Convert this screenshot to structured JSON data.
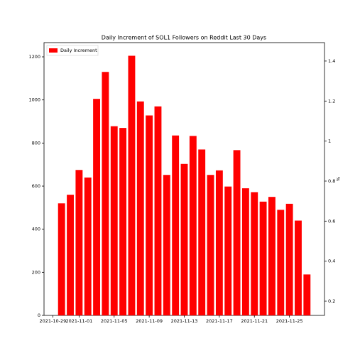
{
  "chart_data": {
    "type": "bar",
    "title": "Daily Increment of SOL1 Followers on Reddit Last 30 Days",
    "y2label": "%",
    "x": [
      "2021-10-30",
      "2021-10-31",
      "2021-11-01",
      "2021-11-02",
      "2021-11-03",
      "2021-11-04",
      "2021-11-05",
      "2021-11-06",
      "2021-11-07",
      "2021-11-08",
      "2021-11-09",
      "2021-11-10",
      "2021-11-11",
      "2021-11-12",
      "2021-11-13",
      "2021-11-14",
      "2021-11-15",
      "2021-11-16",
      "2021-11-17",
      "2021-11-18",
      "2021-11-19",
      "2021-11-20",
      "2021-11-21",
      "2021-11-22",
      "2021-11-23",
      "2021-11-24",
      "2021-11-25",
      "2021-11-26",
      "2021-11-27"
    ],
    "series": [
      {
        "name": "Daily Increment",
        "color": "#ff0000",
        "values": [
          520,
          560,
          675,
          640,
          1005,
          1130,
          878,
          870,
          1205,
          993,
          928,
          970,
          652,
          835,
          703,
          833,
          770,
          652,
          673,
          598,
          767,
          590,
          572,
          528,
          550,
          490,
          518,
          440,
          190
        ]
      }
    ],
    "xlim": [
      "2021-10-28",
      "2021-11-29"
    ],
    "xticks": [
      "2021-10-29",
      "2021-11-01",
      "2021-11-05",
      "2021-11-09",
      "2021-11-13",
      "2021-11-17",
      "2021-11-21",
      "2021-11-25"
    ],
    "ylim": [
      0,
      1266
    ],
    "yticks": [
      0,
      200,
      400,
      600,
      800,
      1000,
      1200
    ],
    "y2lim": [
      0.129,
      1.492
    ],
    "y2ticks": [
      0.2,
      0.4,
      0.6,
      0.8,
      1.0,
      1.2,
      1.4
    ],
    "legend": "upper left"
  }
}
